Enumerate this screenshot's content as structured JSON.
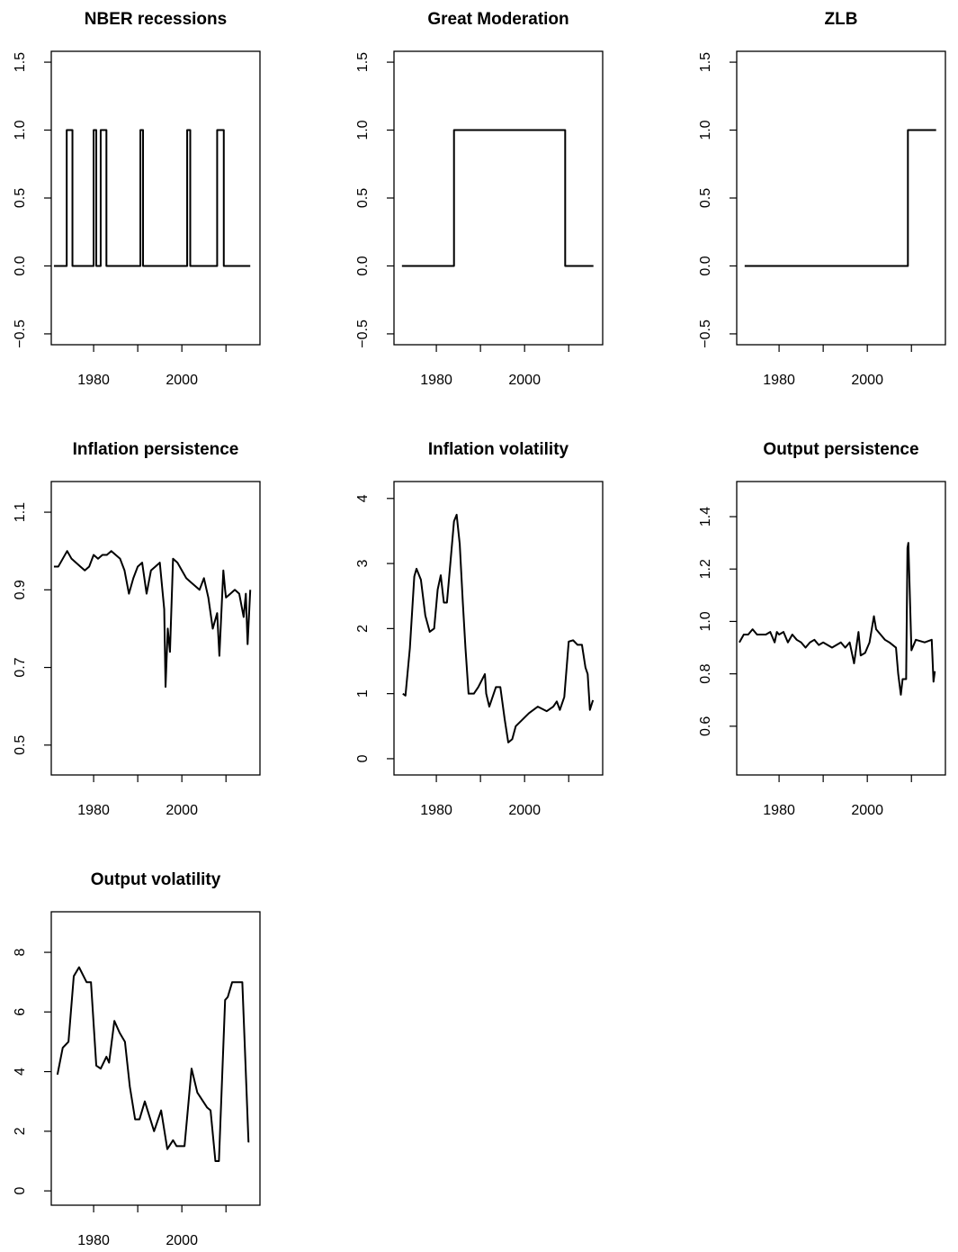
{
  "chart_data": [
    {
      "type": "line",
      "title": "NBER recessions",
      "color": "#000000",
      "x": [
        1971,
        1973.9,
        1973.9,
        1975.2,
        1975.2,
        1980,
        1980,
        1980.6,
        1980.6,
        1981.6,
        1981.6,
        1982.9,
        1982.9,
        1990.6,
        1990.6,
        1991.2,
        1991.2,
        2001.2,
        2001.2,
        2001.9,
        2001.9,
        2008,
        2008,
        2009.5,
        2009.5,
        2015.5
      ],
      "values": [
        0,
        0,
        1,
        1,
        0,
        0,
        1,
        1,
        0,
        0,
        1,
        1,
        0,
        0,
        1,
        1,
        0,
        0,
        1,
        1,
        0,
        0,
        1,
        1,
        0,
        0
      ],
      "xlim": [
        1970.4,
        2017.7
      ],
      "xticks": [
        1980,
        2000
      ],
      "xticks_unlabeled": [
        1990,
        2010
      ],
      "ylim": [
        -0.58,
        1.58
      ],
      "yticks": [
        {
          "value": -0.5,
          "label": "−0.5"
        },
        {
          "value": 0,
          "label": "0.0"
        },
        0.5,
        {
          "value": 1,
          "label": "1.0"
        },
        1.5
      ]
    },
    {
      "type": "line",
      "title": "Great Moderation",
      "color": "#000000",
      "x": [
        1972.2,
        1984,
        1984,
        2009.2,
        2009.2,
        2015.6
      ],
      "values": [
        0,
        0,
        1,
        1,
        0,
        0
      ],
      "xlim": [
        1970.4,
        2017.7
      ],
      "xticks": [
        1980,
        2000
      ],
      "xticks_unlabeled": [
        1990,
        2010
      ],
      "ylim": [
        -0.58,
        1.58
      ],
      "yticks": [
        {
          "value": -0.5,
          "label": "−0.5"
        },
        {
          "value": 0,
          "label": "0.0"
        },
        0.5,
        {
          "value": 1,
          "label": "1.0"
        },
        1.5
      ]
    },
    {
      "type": "line",
      "title": "ZLB",
      "color": "#000000",
      "x": [
        1972.2,
        2009.2,
        2009.2,
        2015.6
      ],
      "values": [
        0,
        0,
        1,
        1
      ],
      "xlim": [
        1970.4,
        2017.7
      ],
      "xticks": [
        1980,
        2000
      ],
      "xticks_unlabeled": [
        1990,
        2010
      ],
      "ylim": [
        -0.58,
        1.58
      ],
      "yticks": [
        {
          "value": -0.5,
          "label": "−0.5"
        },
        {
          "value": 0,
          "label": "0.0"
        },
        0.5,
        {
          "value": 1,
          "label": "1.0"
        },
        1.5
      ]
    },
    {
      "type": "line",
      "title": "Inflation persistence",
      "color": "#000000",
      "x": [
        1971,
        1972,
        1973,
        1974,
        1975,
        1976,
        1977,
        1978,
        1979,
        1980,
        1981,
        1982,
        1983,
        1984,
        1985,
        1986,
        1987,
        1988,
        1989,
        1990,
        1991,
        1992,
        1993,
        1994,
        1995,
        1996,
        1996.3,
        1996.8,
        1997.3,
        1998,
        1999,
        2000,
        2001,
        2002,
        2003,
        2004,
        2005,
        2006,
        2007,
        2008,
        2008.5,
        2009.4,
        2009.8,
        2010,
        2011,
        2012,
        2013,
        2014,
        2014.5,
        2014.9,
        2015.5
      ],
      "values": [
        0.96,
        0.96,
        0.98,
        1.0,
        0.98,
        0.97,
        0.96,
        0.95,
        0.96,
        0.99,
        0.98,
        0.99,
        0.99,
        1.0,
        0.99,
        0.98,
        0.95,
        0.89,
        0.93,
        0.96,
        0.97,
        0.89,
        0.95,
        0.96,
        0.97,
        0.85,
        0.65,
        0.8,
        0.74,
        0.98,
        0.97,
        0.95,
        0.93,
        0.92,
        0.91,
        0.9,
        0.93,
        0.88,
        0.8,
        0.84,
        0.73,
        0.95,
        0.9,
        0.88,
        0.89,
        0.9,
        0.89,
        0.83,
        0.89,
        0.76,
        0.9
      ],
      "xlim": [
        1970.4,
        2017.7
      ],
      "xticks": [
        1980,
        2000
      ],
      "xticks_unlabeled": [
        1990,
        2010
      ],
      "ylim": [
        0.423,
        1.179
      ],
      "yticks": [
        0.5,
        0.7,
        0.9,
        1.1
      ]
    },
    {
      "type": "line",
      "title": "Inflation volatility",
      "color": "#000000",
      "x": [
        1972.4,
        1973,
        1974,
        1975,
        1975.5,
        1976.5,
        1977.5,
        1978.5,
        1979.5,
        1980.3,
        1981,
        1981.7,
        1982.4,
        1983.3,
        1984,
        1984.6,
        1985.3,
        1986,
        1986.6,
        1987.3,
        1988.5,
        1989.5,
        1991,
        1991.3,
        1992,
        1993.5,
        1994.5,
        1995.5,
        1996.3,
        1997.2,
        1998,
        1999.5,
        2001,
        2003,
        2005,
        2006.5,
        2007.3,
        2008,
        2009,
        2010,
        2011,
        2012,
        2013,
        2013.8,
        2014.3,
        2014.8,
        2015.5
      ],
      "values": [
        1.0,
        0.97,
        1.7,
        2.8,
        2.92,
        2.75,
        2.2,
        1.95,
        2.0,
        2.6,
        2.82,
        2.4,
        2.4,
        3.1,
        3.65,
        3.75,
        3.3,
        2.4,
        1.7,
        1.0,
        1.0,
        1.1,
        1.3,
        1.0,
        0.8,
        1.1,
        1.1,
        0.6,
        0.25,
        0.3,
        0.5,
        0.6,
        0.7,
        0.8,
        0.73,
        0.8,
        0.88,
        0.75,
        0.95,
        1.8,
        1.82,
        1.75,
        1.75,
        1.4,
        1.3,
        0.75,
        0.9
      ],
      "xlim": [
        1970.4,
        2017.7
      ],
      "xticks": [
        1980,
        2000
      ],
      "xticks_unlabeled": [
        1990,
        2010
      ],
      "ylim": [
        -0.25,
        4.26
      ],
      "yticks": [
        0,
        1,
        2,
        3,
        4
      ]
    },
    {
      "type": "line",
      "title": "Output persistence",
      "color": "#000000",
      "x": [
        1971,
        1972,
        1973,
        1974,
        1975,
        1977,
        1978,
        1979,
        1979.5,
        1980,
        1981,
        1982,
        1983,
        1984,
        1985,
        1986,
        1987,
        1988,
        1989,
        1990,
        1992,
        1994,
        1995,
        1996,
        1997,
        1998,
        1998.5,
        1999.5,
        2000.5,
        2001.5,
        2002,
        2003,
        2004,
        2005,
        2006.5,
        2007,
        2007.6,
        2008,
        2008.8,
        2009.1,
        2009.3,
        2010,
        2011,
        2013,
        2014.6,
        2015,
        2015.3
      ],
      "values": [
        0.92,
        0.95,
        0.95,
        0.97,
        0.95,
        0.95,
        0.96,
        0.92,
        0.96,
        0.95,
        0.96,
        0.92,
        0.95,
        0.93,
        0.92,
        0.9,
        0.92,
        0.93,
        0.91,
        0.92,
        0.9,
        0.92,
        0.9,
        0.92,
        0.84,
        0.96,
        0.87,
        0.88,
        0.92,
        1.02,
        0.97,
        0.95,
        0.93,
        0.92,
        0.9,
        0.8,
        0.72,
        0.78,
        0.78,
        1.28,
        1.3,
        0.89,
        0.93,
        0.92,
        0.93,
        0.77,
        0.81
      ],
      "xlim": [
        1970.4,
        2017.7
      ],
      "xticks": [
        1980,
        2000
      ],
      "xticks_unlabeled": [
        1990,
        2010
      ],
      "ylim": [
        0.414,
        1.534
      ],
      "yticks": [
        0.6,
        0.8,
        {
          "value": 1,
          "label": "1.0"
        },
        1.2,
        1.4
      ]
    },
    {
      "type": "line",
      "title": "Output volatility",
      "color": "#000000",
      "x": [
        1971.8,
        1973,
        1974.3,
        1975.5,
        1976.7,
        1978.4,
        1979.4,
        1980.6,
        1981.6,
        1982.9,
        1983.5,
        1984.7,
        1985.9,
        1987.1,
        1988.2,
        1989.4,
        1990.4,
        1991.6,
        1993.7,
        1995.3,
        1996.7,
        1998,
        1998.8,
        2000.6,
        2002.2,
        2003.5,
        2005.7,
        2006.5,
        2007.6,
        2008.4,
        2009.8,
        2010.4,
        2011.4,
        2013.7,
        2015.1,
        2015.3
      ],
      "values": [
        3.9,
        4.8,
        5.0,
        7.2,
        7.5,
        7.0,
        7.0,
        4.2,
        4.1,
        4.5,
        4.3,
        5.7,
        5.3,
        5.0,
        3.5,
        2.4,
        2.4,
        3.0,
        2.0,
        2.7,
        1.4,
        1.7,
        1.5,
        1.5,
        4.1,
        3.3,
        2.8,
        2.7,
        1.0,
        1.0,
        6.4,
        6.5,
        7.0,
        7.0,
        1.65,
        1.65
      ],
      "xlim": [
        1970.4,
        2017.7
      ],
      "xticks": [
        1980,
        2000
      ],
      "xticks_unlabeled": [
        1990,
        2010
      ],
      "ylim": [
        -0.48,
        9.36
      ],
      "yticks": [
        0,
        2,
        4,
        6,
        8
      ]
    }
  ]
}
